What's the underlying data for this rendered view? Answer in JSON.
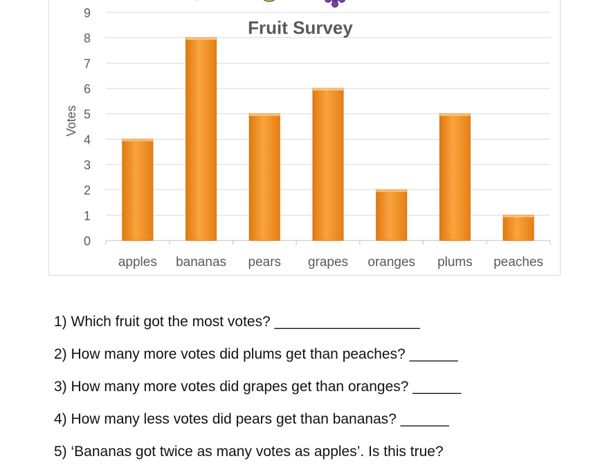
{
  "chart_data": {
    "type": "bar",
    "title": "Fruit Survey",
    "ylabel": "Votes",
    "xlabel": "",
    "categories": [
      "apples",
      "bananas",
      "pears",
      "grapes",
      "oranges",
      "plums",
      "peaches"
    ],
    "values": [
      4,
      8,
      5,
      6,
      2,
      5,
      1
    ],
    "ylim": [
      0,
      9
    ],
    "yticks": [
      "0",
      "1",
      "2",
      "3",
      "4",
      "5",
      "6",
      "7",
      "8",
      "9"
    ],
    "grid": true,
    "legend": "none",
    "bar_color": "#f28e1d",
    "bar_edge_color": "#d0700a",
    "fruit_icons": [
      "banana-icon",
      "pear-icon",
      "grapes-icon",
      "orange-icon",
      "plum-icon"
    ]
  },
  "questions": [
    {
      "text": "1) Which fruit got the most votes? __________________"
    },
    {
      "text": "2) How many more votes did plums get than peaches? ______"
    },
    {
      "text": "3) How many more votes did grapes get than oranges? ______"
    },
    {
      "text": "4) How many less votes did pears get than bananas? ______"
    },
    {
      "text": "5) ‘Bananas got twice as many votes as apples’. Is this true?"
    }
  ]
}
